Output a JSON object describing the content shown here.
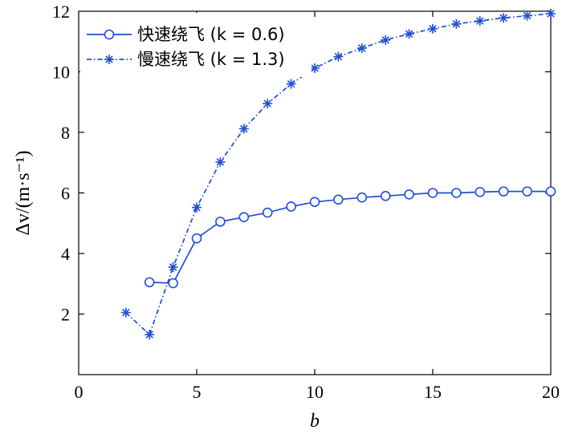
{
  "chart_data": {
    "type": "line",
    "xlabel": "b",
    "ylabel": "Δv/(m·s⁻¹)",
    "xlim": [
      0,
      20
    ],
    "ylim": [
      0,
      12
    ],
    "xticks": [
      "0",
      "5",
      "10",
      "15",
      "20"
    ],
    "yticks": [
      "2",
      "4",
      "6",
      "8",
      "10",
      "12"
    ],
    "grid": false,
    "legend_position": "top-left",
    "series": [
      {
        "name": "快速绕飞 (k = 0.6)",
        "color": "#1f4fd8",
        "marker": "circle",
        "line_style": "solid",
        "x": [
          3,
          4,
          5,
          6,
          7,
          8,
          9,
          10,
          11,
          12,
          13,
          14,
          15,
          16,
          17,
          18,
          19,
          20
        ],
        "y": [
          3.05,
          3.02,
          4.5,
          5.05,
          5.2,
          5.35,
          5.55,
          5.7,
          5.78,
          5.85,
          5.9,
          5.95,
          6.0,
          6.0,
          6.03,
          6.05,
          6.05,
          6.05
        ]
      },
      {
        "name": "慢速绕飞 (k = 1.3)",
        "color": "#1f4fd8",
        "marker": "star",
        "line_style": "dash-dot",
        "x": [
          2,
          3,
          4,
          5,
          6,
          7,
          8,
          9,
          10,
          11,
          12,
          13,
          14,
          15,
          16,
          17,
          18,
          19,
          20
        ],
        "y": [
          2.05,
          1.32,
          3.55,
          5.52,
          7.02,
          8.12,
          8.95,
          9.6,
          10.12,
          10.5,
          10.78,
          11.05,
          11.25,
          11.42,
          11.58,
          11.68,
          11.78,
          11.85,
          11.92
        ]
      }
    ]
  }
}
